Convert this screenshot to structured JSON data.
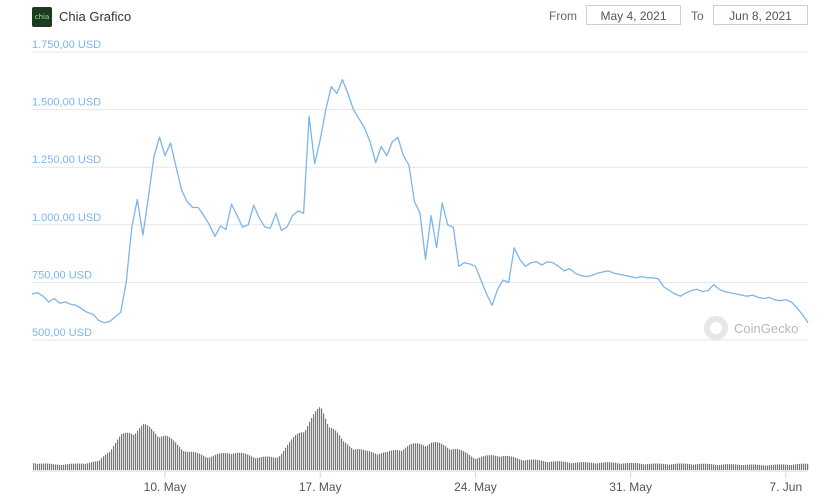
{
  "header": {
    "logo_text": "chia",
    "title": "Chia Grafico",
    "from_label": "From",
    "from_date": "May 4, 2021",
    "to_label": "To",
    "to_date": "Jun 8, 2021"
  },
  "watermark": "CoinGecko",
  "colors": {
    "line": "#7cb5ec",
    "axis_text_y": "#7cb5ec",
    "axis_text_x": "#555555",
    "grid": "#e6e6e6",
    "volume": "#777777"
  },
  "chart_data": {
    "type": "line",
    "title": "",
    "xlabel": "",
    "ylabel": "",
    "ylim": [
      500,
      1750
    ],
    "y_ticks": [
      500,
      750,
      1000,
      1250,
      1500,
      1750
    ],
    "y_tick_labels": [
      "500,00 USD",
      "750,00 USD",
      "1.000,00 USD",
      "1.250,00 USD",
      "1.500,00 USD",
      "1.750,00 USD"
    ],
    "x_range": [
      "2021-05-04",
      "2021-06-08"
    ],
    "x_ticks": [
      "2021-05-10",
      "2021-05-17",
      "2021-05-24",
      "2021-05-31",
      "2021-06-07"
    ],
    "x_tick_labels": [
      "10. May",
      "17. May",
      "24. May",
      "31. May",
      "7. Jun"
    ],
    "grid": true,
    "series": [
      {
        "values_type": "price_usd",
        "points": [
          [
            "2021-05-04T00:00",
            700
          ],
          [
            "2021-05-04T06:00",
            705
          ],
          [
            "2021-05-04T12:00",
            690
          ],
          [
            "2021-05-04T18:00",
            665
          ],
          [
            "2021-05-05T00:00",
            680
          ],
          [
            "2021-05-05T06:00",
            660
          ],
          [
            "2021-05-05T12:00",
            665
          ],
          [
            "2021-05-05T18:00",
            655
          ],
          [
            "2021-05-06T00:00",
            650
          ],
          [
            "2021-05-06T06:00",
            635
          ],
          [
            "2021-05-06T12:00",
            620
          ],
          [
            "2021-05-06T18:00",
            612
          ],
          [
            "2021-05-07T00:00",
            585
          ],
          [
            "2021-05-07T06:00",
            575
          ],
          [
            "2021-05-07T12:00",
            580
          ],
          [
            "2021-05-07T18:00",
            600
          ],
          [
            "2021-05-08T00:00",
            620
          ],
          [
            "2021-05-08T06:00",
            750
          ],
          [
            "2021-05-08T12:00",
            990
          ],
          [
            "2021-05-08T18:00",
            1110
          ],
          [
            "2021-05-09T00:00",
            955
          ],
          [
            "2021-05-09T06:00",
            1120
          ],
          [
            "2021-05-09T12:00",
            1295
          ],
          [
            "2021-05-09T18:00",
            1380
          ],
          [
            "2021-05-10T00:00",
            1300
          ],
          [
            "2021-05-10T06:00",
            1355
          ],
          [
            "2021-05-10T12:00",
            1250
          ],
          [
            "2021-05-10T18:00",
            1150
          ],
          [
            "2021-05-11T00:00",
            1100
          ],
          [
            "2021-05-11T06:00",
            1075
          ],
          [
            "2021-05-11T12:00",
            1075
          ],
          [
            "2021-05-11T18:00",
            1040
          ],
          [
            "2021-05-12T00:00",
            1000
          ],
          [
            "2021-05-12T06:00",
            950
          ],
          [
            "2021-05-12T12:00",
            995
          ],
          [
            "2021-05-12T18:00",
            980
          ],
          [
            "2021-05-13T00:00",
            1090
          ],
          [
            "2021-05-13T06:00",
            1040
          ],
          [
            "2021-05-13T12:00",
            990
          ],
          [
            "2021-05-13T18:00",
            1000
          ],
          [
            "2021-05-14T00:00",
            1085
          ],
          [
            "2021-05-14T06:00",
            1030
          ],
          [
            "2021-05-14T12:00",
            990
          ],
          [
            "2021-05-14T18:00",
            985
          ],
          [
            "2021-05-15T00:00",
            1050
          ],
          [
            "2021-05-15T06:00",
            975
          ],
          [
            "2021-05-15T12:00",
            990
          ],
          [
            "2021-05-15T18:00",
            1040
          ],
          [
            "2021-05-16T00:00",
            1060
          ],
          [
            "2021-05-16T06:00",
            1050
          ],
          [
            "2021-05-16T12:00",
            1470
          ],
          [
            "2021-05-16T18:00",
            1265
          ],
          [
            "2021-05-17T00:00",
            1370
          ],
          [
            "2021-05-17T06:00",
            1500
          ],
          [
            "2021-05-17T12:00",
            1600
          ],
          [
            "2021-05-17T18:00",
            1570
          ],
          [
            "2021-05-18T00:00",
            1630
          ],
          [
            "2021-05-18T06:00",
            1570
          ],
          [
            "2021-05-18T12:00",
            1500
          ],
          [
            "2021-05-18T18:00",
            1460
          ],
          [
            "2021-05-19T00:00",
            1420
          ],
          [
            "2021-05-19T06:00",
            1360
          ],
          [
            "2021-05-19T12:00",
            1270
          ],
          [
            "2021-05-19T18:00",
            1340
          ],
          [
            "2021-05-20T00:00",
            1300
          ],
          [
            "2021-05-20T06:00",
            1360
          ],
          [
            "2021-05-20T12:00",
            1380
          ],
          [
            "2021-05-20T18:00",
            1300
          ],
          [
            "2021-05-21T00:00",
            1260
          ],
          [
            "2021-05-21T06:00",
            1100
          ],
          [
            "2021-05-21T12:00",
            1050
          ],
          [
            "2021-05-21T18:00",
            850
          ],
          [
            "2021-05-22T00:00",
            1040
          ],
          [
            "2021-05-22T06:00",
            900
          ],
          [
            "2021-05-22T12:00",
            1095
          ],
          [
            "2021-05-22T18:00",
            1000
          ],
          [
            "2021-05-23T00:00",
            990
          ],
          [
            "2021-05-23T06:00",
            820
          ],
          [
            "2021-05-23T12:00",
            835
          ],
          [
            "2021-05-23T18:00",
            830
          ],
          [
            "2021-05-24T00:00",
            820
          ],
          [
            "2021-05-24T06:00",
            760
          ],
          [
            "2021-05-24T12:00",
            700
          ],
          [
            "2021-05-24T18:00",
            650
          ],
          [
            "2021-05-25T00:00",
            720
          ],
          [
            "2021-05-25T06:00",
            760
          ],
          [
            "2021-05-25T12:00",
            750
          ],
          [
            "2021-05-25T18:00",
            900
          ],
          [
            "2021-05-26T00:00",
            850
          ],
          [
            "2021-05-26T06:00",
            820
          ],
          [
            "2021-05-26T12:00",
            835
          ],
          [
            "2021-05-26T18:00",
            840
          ],
          [
            "2021-05-27T00:00",
            825
          ],
          [
            "2021-05-27T06:00",
            840
          ],
          [
            "2021-05-27T12:00",
            835
          ],
          [
            "2021-05-27T18:00",
            820
          ],
          [
            "2021-05-28T00:00",
            800
          ],
          [
            "2021-05-28T06:00",
            810
          ],
          [
            "2021-05-28T12:00",
            790
          ],
          [
            "2021-05-28T18:00",
            780
          ],
          [
            "2021-05-29T00:00",
            775
          ],
          [
            "2021-05-29T06:00",
            780
          ],
          [
            "2021-05-29T12:00",
            790
          ],
          [
            "2021-05-29T18:00",
            795
          ],
          [
            "2021-05-30T00:00",
            800
          ],
          [
            "2021-05-30T06:00",
            790
          ],
          [
            "2021-05-30T12:00",
            785
          ],
          [
            "2021-05-30T18:00",
            780
          ],
          [
            "2021-05-31T00:00",
            775
          ],
          [
            "2021-05-31T06:00",
            770
          ],
          [
            "2021-05-31T12:00",
            775
          ],
          [
            "2021-05-31T18:00",
            770
          ],
          [
            "2021-06-01T00:00",
            770
          ],
          [
            "2021-06-01T06:00",
            765
          ],
          [
            "2021-06-01T12:00",
            730
          ],
          [
            "2021-06-01T18:00",
            715
          ],
          [
            "2021-06-02T00:00",
            700
          ],
          [
            "2021-06-02T06:00",
            690
          ],
          [
            "2021-06-02T12:00",
            705
          ],
          [
            "2021-06-02T18:00",
            715
          ],
          [
            "2021-06-03T00:00",
            720
          ],
          [
            "2021-06-03T06:00",
            710
          ],
          [
            "2021-06-03T12:00",
            715
          ],
          [
            "2021-06-03T18:00",
            740
          ],
          [
            "2021-06-04T00:00",
            720
          ],
          [
            "2021-06-04T06:00",
            710
          ],
          [
            "2021-06-04T12:00",
            705
          ],
          [
            "2021-06-04T18:00",
            700
          ],
          [
            "2021-06-05T00:00",
            695
          ],
          [
            "2021-06-05T06:00",
            690
          ],
          [
            "2021-06-05T12:00",
            695
          ],
          [
            "2021-06-05T18:00",
            685
          ],
          [
            "2021-06-06T00:00",
            680
          ],
          [
            "2021-06-06T06:00",
            685
          ],
          [
            "2021-06-06T12:00",
            675
          ],
          [
            "2021-06-06T18:00",
            670
          ],
          [
            "2021-06-07T00:00",
            675
          ],
          [
            "2021-06-07T06:00",
            665
          ],
          [
            "2021-06-07T12:00",
            640
          ],
          [
            "2021-06-07T18:00",
            610
          ],
          [
            "2021-06-08T00:00",
            575
          ]
        ]
      },
      {
        "values_type": "volume_relative",
        "points": [
          [
            "2021-05-04",
            0.12
          ],
          [
            "2021-05-05",
            0.09
          ],
          [
            "2021-05-06",
            0.1
          ],
          [
            "2021-05-07",
            0.14
          ],
          [
            "2021-05-08",
            0.55
          ],
          [
            "2021-05-09",
            0.72
          ],
          [
            "2021-05-10",
            0.55
          ],
          [
            "2021-05-11",
            0.3
          ],
          [
            "2021-05-12",
            0.22
          ],
          [
            "2021-05-13",
            0.3
          ],
          [
            "2021-05-14",
            0.22
          ],
          [
            "2021-05-15",
            0.2
          ],
          [
            "2021-05-16",
            0.6
          ],
          [
            "2021-05-17",
            1.0
          ],
          [
            "2021-05-18",
            0.45
          ],
          [
            "2021-05-19",
            0.3
          ],
          [
            "2021-05-20",
            0.28
          ],
          [
            "2021-05-21",
            0.4
          ],
          [
            "2021-05-22",
            0.45
          ],
          [
            "2021-05-23",
            0.36
          ],
          [
            "2021-05-24",
            0.2
          ],
          [
            "2021-05-25",
            0.25
          ],
          [
            "2021-05-26",
            0.18
          ],
          [
            "2021-05-27",
            0.15
          ],
          [
            "2021-05-28",
            0.13
          ],
          [
            "2021-05-29",
            0.12
          ],
          [
            "2021-05-30",
            0.12
          ],
          [
            "2021-05-31",
            0.11
          ],
          [
            "2021-06-01",
            0.1
          ],
          [
            "2021-06-02",
            0.1
          ],
          [
            "2021-06-03",
            0.1
          ],
          [
            "2021-06-04",
            0.09
          ],
          [
            "2021-06-05",
            0.09
          ],
          [
            "2021-06-06",
            0.08
          ],
          [
            "2021-06-07",
            0.09
          ],
          [
            "2021-06-08",
            0.1
          ]
        ]
      }
    ]
  }
}
